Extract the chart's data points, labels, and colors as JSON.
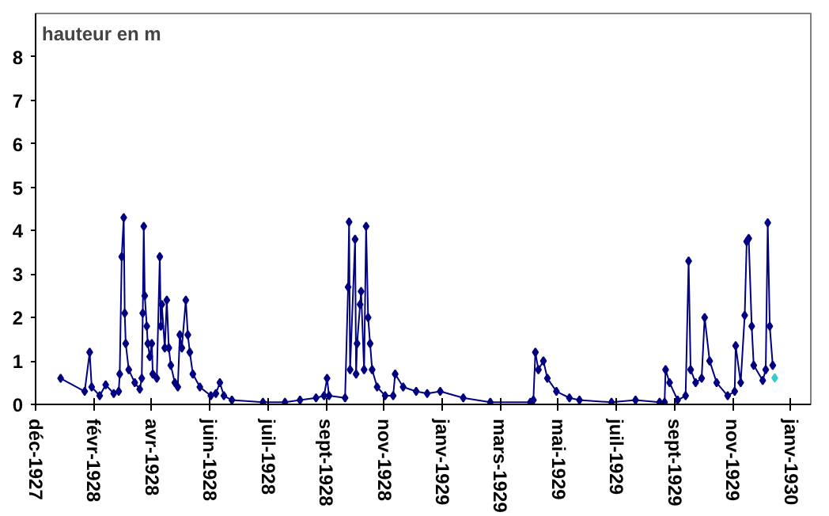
{
  "chart_data": {
    "type": "line",
    "ylabel": "hauteur en m",
    "marker": "diamond",
    "line_style": "solid",
    "grid": false,
    "xlim": [
      "1927-12-11",
      "1930-01-23"
    ],
    "ylim": [
      0,
      9
    ],
    "yticks": [
      0,
      1,
      2,
      3,
      4,
      5,
      6,
      7,
      8
    ],
    "xticks": [
      {
        "value": "1927-12-11",
        "label": "déc-1927"
      },
      {
        "value": "1928-02-07",
        "label": "févr-1928"
      },
      {
        "value": "1928-04-05",
        "label": "avr-1928"
      },
      {
        "value": "1928-06-02",
        "label": "juin-1928"
      },
      {
        "value": "1928-07-30",
        "label": "juil-1928"
      },
      {
        "value": "1928-09-26",
        "label": "sept-1928"
      },
      {
        "value": "1928-11-23",
        "label": "nov-1928"
      },
      {
        "value": "1929-01-20",
        "label": "janv-1929"
      },
      {
        "value": "1929-03-19",
        "label": "mars-1929"
      },
      {
        "value": "1929-05-16",
        "label": "mai-1929"
      },
      {
        "value": "1929-07-13",
        "label": "juil-1929"
      },
      {
        "value": "1929-09-09",
        "label": "sept-1929"
      },
      {
        "value": "1929-11-06",
        "label": "nov-1929"
      },
      {
        "value": "1930-01-03",
        "label": "janv-1930"
      }
    ],
    "series": [
      {
        "color": "#000080",
        "x": [
          "1928-01-05",
          "1928-01-29",
          "1928-02-03",
          "1928-02-05",
          "1928-02-13",
          "1928-02-19",
          "1928-02-27",
          "1928-03-03",
          "1928-03-04",
          "1928-03-06",
          "1928-03-08",
          "1928-03-09",
          "1928-03-10",
          "1928-03-13",
          "1928-03-19",
          "1928-03-24",
          "1928-03-26",
          "1928-03-27",
          "1928-03-28",
          "1928-03-29",
          "1928-03-31",
          "1928-04-01",
          "1928-04-03",
          "1928-04-05",
          "1928-04-06",
          "1928-04-10",
          "1928-04-13",
          "1928-04-14",
          "1928-04-15",
          "1928-04-18",
          "1928-04-20",
          "1928-04-22",
          "1928-04-24",
          "1928-04-28",
          "1928-05-01",
          "1928-05-03",
          "1928-05-05",
          "1928-05-09",
          "1928-05-11",
          "1928-05-13",
          "1928-05-16",
          "1928-05-23",
          "1928-06-03",
          "1928-06-08",
          "1928-06-12",
          "1928-06-16",
          "1928-06-24",
          "1928-07-25",
          "1928-08-16",
          "1928-08-31",
          "1928-09-16",
          "1928-09-24",
          "1928-09-27",
          "1928-09-29",
          "1928-10-15",
          "1928-10-18",
          "1928-10-19",
          "1928-10-20",
          "1928-10-25",
          "1928-10-26",
          "1928-10-27",
          "1928-10-30",
          "1928-10-31",
          "1928-11-03",
          "1928-11-05",
          "1928-11-07",
          "1928-11-09",
          "1928-11-11",
          "1928-11-16",
          "1928-11-24",
          "1928-12-02",
          "1928-12-04",
          "1928-12-12",
          "1928-12-25",
          "1929-01-05",
          "1929-01-18",
          "1929-02-10",
          "1929-03-09",
          "1929-04-18",
          "1929-04-21",
          "1929-04-23",
          "1929-04-26",
          "1929-05-01",
          "1929-05-05",
          "1929-05-14",
          "1929-05-27",
          "1929-06-06",
          "1929-07-08",
          "1929-08-01",
          "1929-08-25",
          "1929-08-30",
          "1929-08-31",
          "1929-09-04",
          "1929-09-12",
          "1929-09-20",
          "1929-09-23",
          "1929-09-25",
          "1929-09-30",
          "1929-10-06",
          "1929-10-09",
          "1929-10-14",
          "1929-10-21",
          "1929-11-01",
          "1929-11-08",
          "1929-11-09",
          "1929-11-14",
          "1929-11-18",
          "1929-11-20",
          "1929-11-22",
          "1929-11-25",
          "1929-11-27",
          "1929-12-06",
          "1929-12-09",
          "1929-12-11",
          "1929-12-13",
          "1929-12-16"
        ],
        "values": [
          0.6,
          0.3,
          1.2,
          0.4,
          0.2,
          0.45,
          0.25,
          0.3,
          0.7,
          3.4,
          4.3,
          2.1,
          1.4,
          0.8,
          0.5,
          0.35,
          0.6,
          2.1,
          4.1,
          2.5,
          1.8,
          1.4,
          1.1,
          1.4,
          0.7,
          0.6,
          3.4,
          1.8,
          2.3,
          1.3,
          2.4,
          1.3,
          0.9,
          0.5,
          0.4,
          1.6,
          1.3,
          2.4,
          1.6,
          1.2,
          0.7,
          0.4,
          0.2,
          0.25,
          0.5,
          0.2,
          0.1,
          0.05,
          0.05,
          0.1,
          0.15,
          0.2,
          0.6,
          0.2,
          0.15,
          2.7,
          4.2,
          0.8,
          3.8,
          0.7,
          1.4,
          2.3,
          2.6,
          0.8,
          4.1,
          2.0,
          1.4,
          0.8,
          0.4,
          0.2,
          0.2,
          0.7,
          0.4,
          0.3,
          0.25,
          0.3,
          0.15,
          0.05,
          0.05,
          0.1,
          1.2,
          0.8,
          1.0,
          0.6,
          0.3,
          0.15,
          0.1,
          0.05,
          0.1,
          0.05,
          0.05,
          0.8,
          0.5,
          0.1,
          0.2,
          3.3,
          0.8,
          0.5,
          0.6,
          2.0,
          1.0,
          0.5,
          0.2,
          0.3,
          1.35,
          0.5,
          2.05,
          3.75,
          3.82,
          1.8,
          0.9,
          0.55,
          0.8,
          4.18,
          1.8,
          0.9
        ]
      },
      {
        "type": "scatter",
        "color": "#33cccc",
        "x": [
          "1929-12-18"
        ],
        "values": [
          0.61
        ]
      }
    ]
  }
}
